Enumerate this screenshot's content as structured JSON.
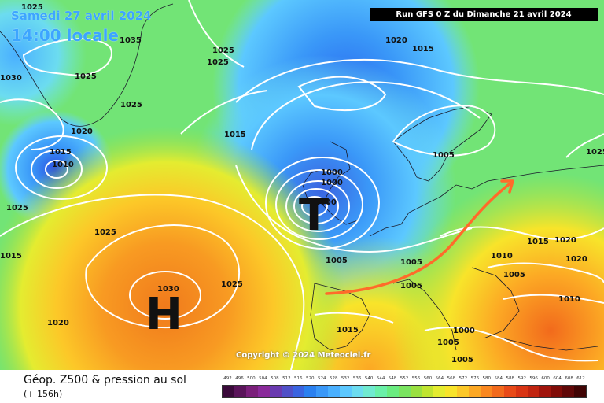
{
  "header": {
    "date_text": "Samedi 27 avril 2024",
    "time_text": "14:00 locale",
    "run_text": "Run GFS 0 Z du Dimanche 21 avril 2024"
  },
  "map": {
    "high_symbol": "H",
    "low_symbol": "T",
    "copyright": "Copyright © 2024 Meteociel.fr",
    "pressure_labels": [
      "1025",
      "1035",
      "1025",
      "1025",
      "1030",
      "1025",
      "1020",
      "1015",
      "1010",
      "1025",
      "1025",
      "1025",
      "1020",
      "1015",
      "1015",
      "1000",
      "1000",
      "1005",
      "1005",
      "1005",
      "1005",
      "1015",
      "1015",
      "1020",
      "1020",
      "1010",
      "1010",
      "1030",
      "1025",
      "1020",
      "1015",
      "1000",
      "1005",
      "1005",
      "1000",
      "1025",
      "1005"
    ],
    "arrow_color": "#ff6a2a"
  },
  "footer": {
    "title": "Géop. Z500 & pression au sol",
    "subtitle": "(+ 156h)",
    "scale_values": [
      "492",
      "496",
      "500",
      "504",
      "508",
      "512",
      "516",
      "520",
      "524",
      "528",
      "532",
      "536",
      "540",
      "544",
      "548",
      "552",
      "556",
      "560",
      "564",
      "568",
      "572",
      "576",
      "580",
      "584",
      "588",
      "592",
      "596",
      "600",
      "604",
      "608",
      "612"
    ],
    "scale_colors": [
      "#3a0a3a",
      "#5a145a",
      "#7a1f7a",
      "#8a2a9a",
      "#6a3ab0",
      "#5050c8",
      "#3a64e0",
      "#2a80f0",
      "#3a98f8",
      "#4ab0ff",
      "#5cc8ff",
      "#6cdcf0",
      "#70ead0",
      "#6af0a8",
      "#6aec80",
      "#7ae460",
      "#9ae040",
      "#c0e430",
      "#e4ec30",
      "#f8e42a",
      "#fcc828",
      "#fca824",
      "#fa8820",
      "#f26a1c",
      "#e84a18",
      "#d83414",
      "#c02410",
      "#a0140c",
      "#800c08",
      "#600808",
      "#400404"
    ]
  }
}
